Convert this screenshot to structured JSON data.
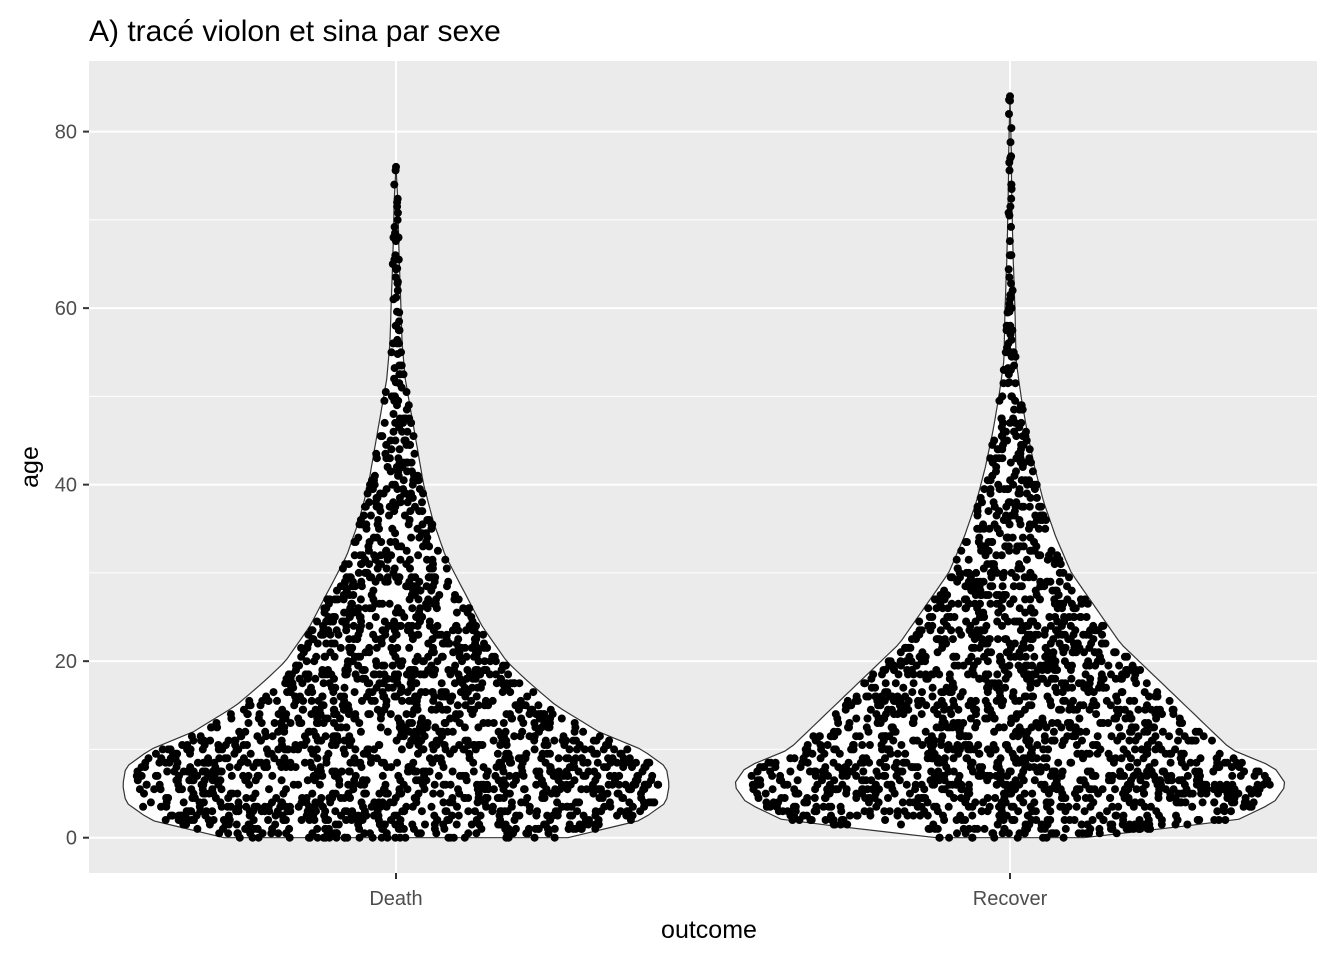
{
  "chart_data": {
    "type": "violin-sina",
    "title": "A) tracé violon et sina par sexe",
    "xlabel": "outcome",
    "ylabel": "age",
    "categories": [
      "Death",
      "Recover"
    ],
    "ylim": [
      -4,
      88
    ],
    "yticks": [
      0,
      20,
      40,
      60,
      80
    ],
    "grid": true,
    "legend": "none",
    "colors": {
      "panel": "#ebebeb",
      "grid": "#ffffff",
      "points": "#000000",
      "violin_fill": "#ffffff",
      "violin_outline": "#333333",
      "tick_label": "#4d4d4d"
    },
    "violins": [
      {
        "category": "Death",
        "max_age": 76,
        "density": [
          {
            "age": 0,
            "half_width": 0.28
          },
          {
            "age": 2,
            "half_width": 0.4
          },
          {
            "age": 4,
            "half_width": 0.44
          },
          {
            "age": 6,
            "half_width": 0.445
          },
          {
            "age": 8,
            "half_width": 0.44
          },
          {
            "age": 10,
            "half_width": 0.4
          },
          {
            "age": 12,
            "half_width": 0.33
          },
          {
            "age": 15,
            "half_width": 0.26
          },
          {
            "age": 18,
            "half_width": 0.21
          },
          {
            "age": 20,
            "half_width": 0.18
          },
          {
            "age": 24,
            "half_width": 0.14
          },
          {
            "age": 28,
            "half_width": 0.11
          },
          {
            "age": 32,
            "half_width": 0.08
          },
          {
            "age": 36,
            "half_width": 0.06
          },
          {
            "age": 40,
            "half_width": 0.045
          },
          {
            "age": 44,
            "half_width": 0.035
          },
          {
            "age": 48,
            "half_width": 0.025
          },
          {
            "age": 52,
            "half_width": 0.015
          },
          {
            "age": 56,
            "half_width": 0.01
          },
          {
            "age": 60,
            "half_width": 0.008
          },
          {
            "age": 66,
            "half_width": 0.005
          },
          {
            "age": 72,
            "half_width": 0.003
          },
          {
            "age": 76,
            "half_width": 0.0
          }
        ]
      },
      {
        "category": "Recover",
        "max_age": 84,
        "density": [
          {
            "age": 0,
            "half_width": 0.12
          },
          {
            "age": 2,
            "half_width": 0.37
          },
          {
            "age": 4,
            "half_width": 0.43
          },
          {
            "age": 6,
            "half_width": 0.45
          },
          {
            "age": 8,
            "half_width": 0.43
          },
          {
            "age": 10,
            "half_width": 0.36
          },
          {
            "age": 14,
            "half_width": 0.3
          },
          {
            "age": 18,
            "half_width": 0.24
          },
          {
            "age": 22,
            "half_width": 0.18
          },
          {
            "age": 26,
            "half_width": 0.14
          },
          {
            "age": 30,
            "half_width": 0.1
          },
          {
            "age": 34,
            "half_width": 0.075
          },
          {
            "age": 38,
            "half_width": 0.055
          },
          {
            "age": 42,
            "half_width": 0.04
          },
          {
            "age": 46,
            "half_width": 0.028
          },
          {
            "age": 50,
            "half_width": 0.018
          },
          {
            "age": 54,
            "half_width": 0.01
          },
          {
            "age": 60,
            "half_width": 0.008
          },
          {
            "age": 66,
            "half_width": 0.005
          },
          {
            "age": 72,
            "half_width": 0.003
          },
          {
            "age": 78,
            "half_width": 0.002
          },
          {
            "age": 84,
            "half_width": 0.0
          }
        ]
      }
    ]
  }
}
